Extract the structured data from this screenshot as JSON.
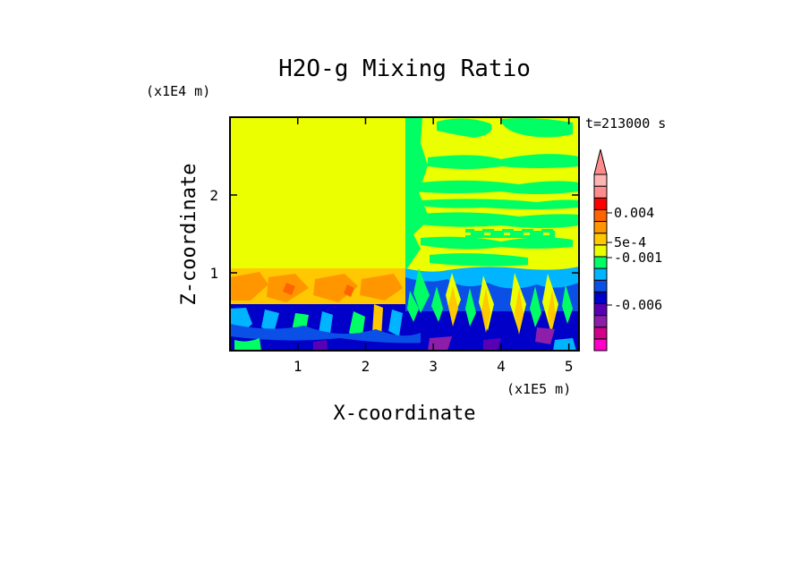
{
  "chart_data": {
    "type": "heatmap",
    "title": "H2O-g Mixing Ratio",
    "xlabel": "X-coordinate",
    "ylabel": "Z-coordinate",
    "x_scale_label": "(x1E5 m)",
    "y_scale_label": "(x1E4 m)",
    "time_label": "t=213000 s",
    "xlim": [
      0,
      5.15
    ],
    "ylim": [
      0,
      3.0
    ],
    "x_ticks": [
      "1",
      "2",
      "3",
      "4",
      "5"
    ],
    "y_ticks": [
      "1",
      "2"
    ],
    "colorbar": {
      "labels": [
        "0.004",
        "5e-4",
        "-0.001",
        "-0.006"
      ],
      "extend_top": true,
      "levels": [
        {
          "color": "#ff00c8"
        },
        {
          "color": "#d2008c"
        },
        {
          "color": "#8c1eaa"
        },
        {
          "color": "#5a00b4"
        },
        {
          "color": "#0000c8"
        },
        {
          "color": "#0a50e6"
        },
        {
          "color": "#00b4ff"
        },
        {
          "color": "#00ff64"
        },
        {
          "color": "#ebff00"
        },
        {
          "color": "#ffc800"
        },
        {
          "color": "#ff9600"
        },
        {
          "color": "#ff6400"
        },
        {
          "color": "#ff0000"
        },
        {
          "color": "#ff8c8c"
        },
        {
          "color": "#ffb4b4"
        }
      ]
    },
    "regions": [
      {
        "name": "upper-left",
        "x": [
          0,
          2.6
        ],
        "z": [
          1.0,
          3.0
        ],
        "value": "5e-4",
        "color": "#ebff00"
      },
      {
        "name": "upper-right",
        "x": [
          2.6,
          5.15
        ],
        "z": [
          1.0,
          3.0
        ],
        "value": "mixed 5e-4 / -0.001",
        "colors": [
          "#ebff00",
          "#00ff64"
        ]
      },
      {
        "name": "boundary-layer",
        "x": [
          0,
          5.15
        ],
        "z": [
          0,
          1.0
        ],
        "value": "below -0.001",
        "colors": [
          "#ff9600",
          "#00b4ff",
          "#0000c8",
          "#5a00b4"
        ]
      }
    ]
  }
}
